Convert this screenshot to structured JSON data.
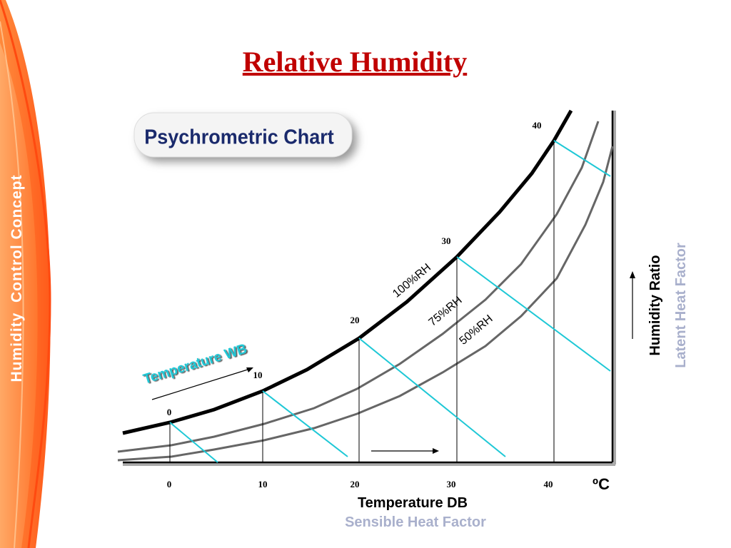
{
  "slide": {
    "title": "Relative Humidity",
    "side_text": "Humidity  Control Concept",
    "badge": "Psychrometric Chart",
    "curve_labels": [
      "100%RH",
      "75%RH",
      "50%RH"
    ],
    "wet_bulb": {
      "label": "Temperature WB",
      "ticks": [
        "0",
        "10",
        "20",
        "30",
        "40"
      ]
    },
    "dry_bulb": {
      "label": "Temperature DB",
      "sublabel": "Sensible Heat Factor",
      "ticks": [
        "0",
        "10",
        "20",
        "30",
        "40"
      ],
      "unit": "ºC"
    },
    "humidity": {
      "label": "Humidity Ratio",
      "sublabel": "Latent Heat Factor"
    }
  }
}
